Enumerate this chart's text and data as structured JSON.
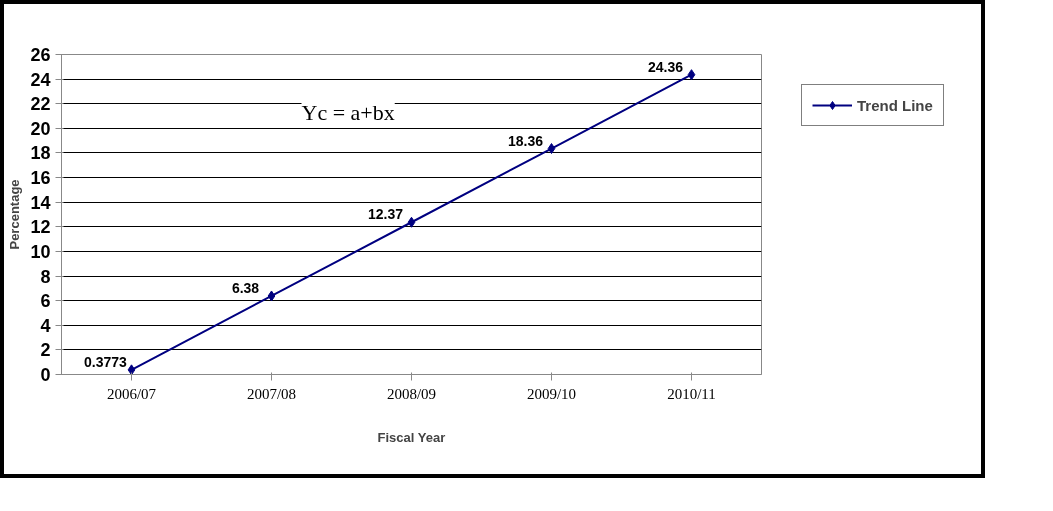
{
  "chart_data": {
    "type": "line",
    "xlabel": "Fiscal Year",
    "ylabel": "Percentage",
    "categories": [
      "2006/07",
      "2007/08",
      "2008/09",
      "2009/10",
      "2010/11"
    ],
    "series": [
      {
        "name": "Trend Line",
        "color": "#000080",
        "values": [
          0.3773,
          6.38,
          12.37,
          18.36,
          24.36
        ]
      }
    ],
    "ylim": [
      0,
      26
    ],
    "yticks": [
      0,
      2,
      4,
      6,
      8,
      10,
      12,
      14,
      16,
      18,
      20,
      22,
      24,
      26
    ],
    "grid": "y",
    "legend": "right",
    "marker": "diamond",
    "data_labels": true,
    "annotations": [
      "Yc = a+bx"
    ]
  }
}
